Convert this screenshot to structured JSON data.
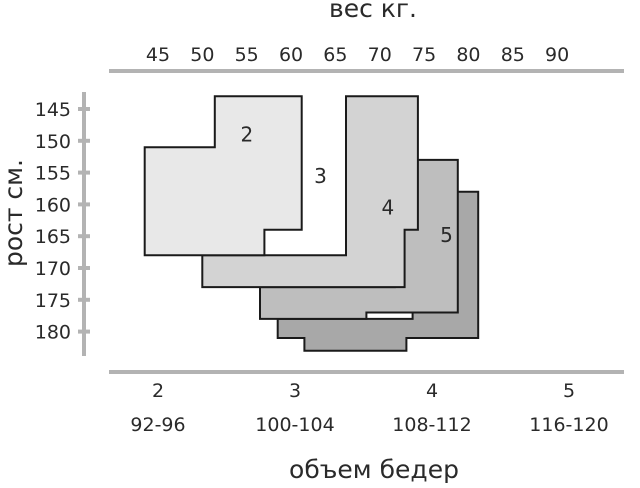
{
  "chart_data": {
    "type": "size-chart",
    "top_axis": {
      "title": "вес кг.",
      "ticks": [
        45,
        50,
        55,
        60,
        65,
        70,
        75,
        80,
        85,
        90
      ]
    },
    "left_axis": {
      "title": "рост см.",
      "ticks": [
        145,
        150,
        155,
        160,
        165,
        170,
        175,
        180
      ]
    },
    "bottom_axis": {
      "title": "объем бедер",
      "sizes": [
        {
          "size": "2",
          "range": "92-96"
        },
        {
          "size": "3",
          "range": "100-104"
        },
        {
          "size": "4",
          "range": "108-112"
        },
        {
          "size": "5",
          "range": "116-120"
        }
      ]
    },
    "regions": [
      {
        "label": "5",
        "color": "#a8a8a8",
        "points": [
          [
            61.5,
            183
          ],
          [
            61.5,
            181
          ],
          [
            58.5,
            181
          ],
          [
            58.5,
            178
          ],
          [
            73.7,
            178
          ],
          [
            73.7,
            158
          ],
          [
            81.1,
            158
          ],
          [
            81.1,
            181
          ],
          [
            73.0,
            181
          ],
          [
            73.0,
            183
          ]
        ]
      },
      {
        "label": "4",
        "color": "#bebebe",
        "points": [
          [
            56.5,
            178
          ],
          [
            56.5,
            173
          ],
          [
            71.7,
            173
          ],
          [
            71.7,
            153
          ],
          [
            78.8,
            153
          ],
          [
            78.8,
            177
          ],
          [
            68.5,
            177
          ],
          [
            68.5,
            178
          ]
        ]
      },
      {
        "label": "3",
        "color": "#d3d3d3",
        "points": [
          [
            50.0,
            173
          ],
          [
            50.0,
            168
          ],
          [
            66.2,
            168
          ],
          [
            66.2,
            143
          ],
          [
            74.3,
            143
          ],
          [
            74.3,
            164
          ],
          [
            72.8,
            164
          ],
          [
            72.8,
            173
          ]
        ]
      },
      {
        "label": "2",
        "color": "#e8e8e8",
        "points": [
          [
            43.5,
            168
          ],
          [
            43.5,
            151
          ],
          [
            51.4,
            151
          ],
          [
            51.4,
            143
          ],
          [
            61.2,
            143
          ],
          [
            61.2,
            164
          ],
          [
            57.0,
            164
          ],
          [
            57.0,
            168
          ]
        ]
      }
    ]
  }
}
